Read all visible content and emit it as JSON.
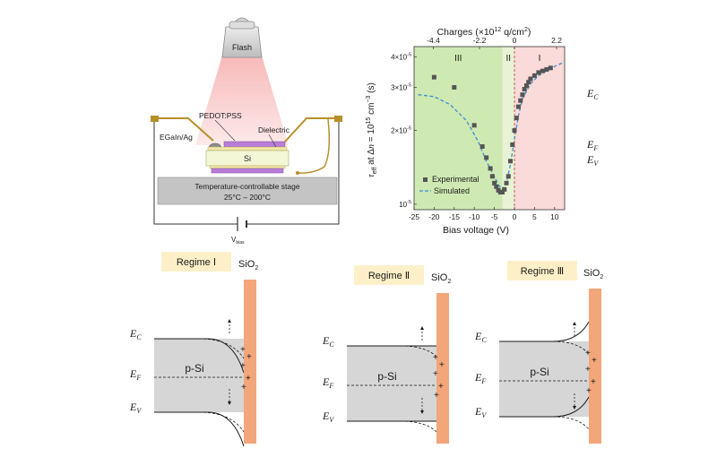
{
  "setup": {
    "flash": "Flash",
    "pedot": "PEDOT:PSS",
    "dielectric": "Dielectric",
    "egain": "EGaIn/Ag",
    "si": "Si",
    "stage_line1": "Temperature-controllable stage",
    "stage_line2": "25°C – 200°C",
    "vbias_main": "V",
    "vbias_sub": "bias"
  },
  "chart_data": {
    "type": "scatter",
    "top_axis": {
      "label_main": "Charges (×10",
      "label_exp": "12",
      "label_unit": " q/cm",
      "label_exp2": "2",
      "label_close": ")",
      "ticks": [
        {
          "label": "-4.4",
          "bias": -20.2
        },
        {
          "label": "-2.2",
          "bias": -8.7
        },
        {
          "label": "0",
          "bias": 0
        },
        {
          "label": "2.2",
          "bias": 10.5
        }
      ]
    },
    "xlabel": "Bias voltage (V)",
    "xlim": [
      -25,
      12.5
    ],
    "xticks": [
      -25,
      -20,
      -15,
      -10,
      -5,
      0,
      5,
      10
    ],
    "ylabel_parts": [
      "τ",
      "eff",
      " at Δ",
      "n",
      " = 10",
      "15",
      " cm",
      "−3",
      " (s)"
    ],
    "ylim": [
      9.5e-06,
      4.4e-05
    ],
    "yticks": [
      {
        "value": 1e-05,
        "m": "10",
        "e": "-5"
      },
      {
        "value": 2e-05,
        "m": "2×10",
        "e": "-5"
      },
      {
        "value": 3e-05,
        "m": "3×10",
        "e": "-5"
      },
      {
        "value": 4e-05,
        "m": "4×10",
        "e": "-5"
      }
    ],
    "regions": [
      {
        "label": "III",
        "from": -25,
        "to": -3,
        "color": "#cfe9b3"
      },
      {
        "label": "II",
        "from": -3,
        "to": 0,
        "color": "#e7f3d4"
      },
      {
        "label": "I",
        "from": 0,
        "to": 12.5,
        "color": "#fbdada"
      }
    ],
    "series": [
      {
        "name": "Experimental",
        "style": "square-marker",
        "color": "#555555",
        "x": [
          -20,
          -15,
          -10,
          -8,
          -7,
          -6,
          -5.5,
          -5,
          -4.5,
          -4,
          -3.5,
          -3,
          -2.5,
          -2,
          -1.5,
          -1,
          -0.5,
          0,
          0.5,
          1,
          1.5,
          2,
          2.5,
          3,
          3.5,
          4,
          5,
          6,
          7,
          8,
          9
        ],
        "y": [
          3.3e-05,
          3e-05,
          2.1e-05,
          1.72e-05,
          1.55e-05,
          1.4e-05,
          1.3e-05,
          1.22e-05,
          1.18e-05,
          1.14e-05,
          1.12e-05,
          1.12e-05,
          1.15e-05,
          1.22e-05,
          1.3e-05,
          1.5e-05,
          1.75e-05,
          2e-05,
          2.25e-05,
          2.5e-05,
          2.65e-05,
          2.8e-05,
          2.95e-05,
          3.05e-05,
          3.15e-05,
          3.25e-05,
          3.35e-05,
          3.45e-05,
          3.5e-05,
          3.55e-05,
          3.6e-05
        ]
      },
      {
        "name": "Simulated",
        "style": "dashed-line",
        "color": "#3b8fd1",
        "x": [
          -24,
          -20,
          -16,
          -12,
          -9,
          -7,
          -5,
          -4,
          -3,
          -2,
          -1,
          0,
          1,
          2,
          4,
          6,
          8,
          10,
          12
        ],
        "y": [
          2.8e-05,
          2.75e-05,
          2.55e-05,
          2.2e-05,
          1.8e-05,
          1.5e-05,
          1.3e-05,
          1.2e-05,
          1.15e-05,
          1.22e-05,
          1.45e-05,
          1.85e-05,
          2.3e-05,
          2.7e-05,
          3.1e-05,
          3.35e-05,
          3.5e-05,
          3.65e-05,
          3.78e-05
        ]
      }
    ],
    "side_labels": {
      "ec_main": "E",
      "ec_sub": "C",
      "ef_main": "E",
      "ef_sub": "F",
      "ev_main": "E",
      "ev_sub": "V"
    }
  },
  "bands": {
    "regimes": [
      {
        "title": "Regime Ⅰ",
        "sio2": "SiO",
        "sio2_sub": "2",
        "psi": "p-Si"
      },
      {
        "title": "Regime Ⅱ",
        "sio2": "SiO",
        "sio2_sub": "2",
        "psi": "p-Si"
      },
      {
        "title": "Regime Ⅲ",
        "sio2": "SiO",
        "sio2_sub": "2",
        "psi": "p-Si"
      }
    ],
    "e_labels": {
      "c_main": "E",
      "c_sub": "C",
      "f_main": "E",
      "f_sub": "F",
      "v_main": "E",
      "v_sub": "V"
    },
    "plus": "+"
  }
}
